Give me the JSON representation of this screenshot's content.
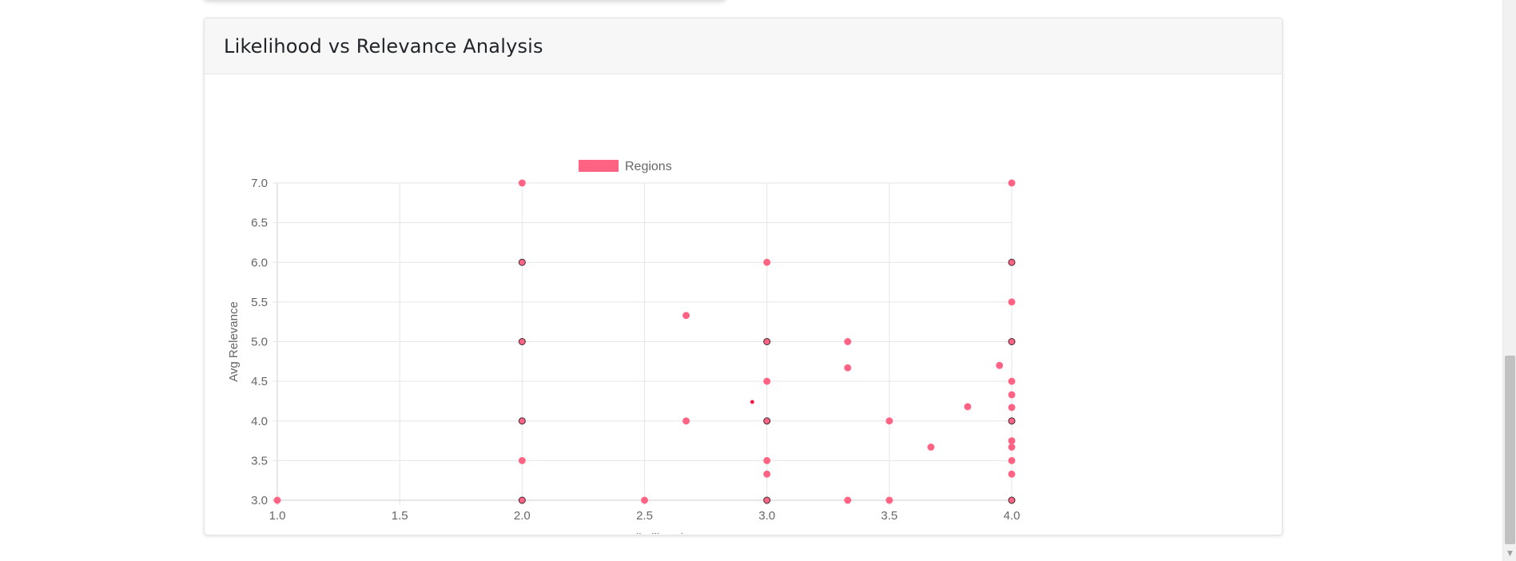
{
  "card": {
    "title": "Likelihood vs Relevance Analysis"
  },
  "icons": {
    "scroll_down": "▼"
  },
  "chart_data": {
    "type": "scatter",
    "title": "",
    "xlabel": "Avg Likelihood",
    "ylabel": "Avg Relevance",
    "xlim": [
      1.0,
      4.0
    ],
    "ylim": [
      3.0,
      7.0
    ],
    "x_ticks": [
      "1.0",
      "1.5",
      "2.0",
      "2.5",
      "3.0",
      "3.5",
      "4.0"
    ],
    "y_ticks": [
      "3.0",
      "3.5",
      "4.0",
      "4.5",
      "5.0",
      "5.5",
      "6.0",
      "6.5",
      "7.0"
    ],
    "grid": true,
    "legend_position": "top",
    "series": [
      {
        "name": "Regions",
        "color": "#ff6384",
        "points": [
          {
            "x": 1.0,
            "y": 3.0
          },
          {
            "x": 2.0,
            "y": 7.0
          },
          {
            "x": 2.0,
            "y": 6.0
          },
          {
            "x": 2.0,
            "y": 5.0
          },
          {
            "x": 2.0,
            "y": 4.0
          },
          {
            "x": 2.0,
            "y": 3.5
          },
          {
            "x": 2.0,
            "y": 3.0
          },
          {
            "x": 2.5,
            "y": 3.0
          },
          {
            "x": 2.67,
            "y": 5.33
          },
          {
            "x": 2.67,
            "y": 4.0
          },
          {
            "x": 2.94,
            "y": 4.24
          },
          {
            "x": 3.0,
            "y": 6.0
          },
          {
            "x": 3.0,
            "y": 5.0
          },
          {
            "x": 3.0,
            "y": 4.5
          },
          {
            "x": 3.0,
            "y": 4.0
          },
          {
            "x": 3.0,
            "y": 3.5
          },
          {
            "x": 3.0,
            "y": 3.33
          },
          {
            "x": 3.0,
            "y": 3.0
          },
          {
            "x": 3.33,
            "y": 5.0
          },
          {
            "x": 3.33,
            "y": 4.67
          },
          {
            "x": 3.33,
            "y": 3.0
          },
          {
            "x": 3.5,
            "y": 4.0
          },
          {
            "x": 3.5,
            "y": 3.0
          },
          {
            "x": 3.67,
            "y": 3.67
          },
          {
            "x": 3.82,
            "y": 4.18
          },
          {
            "x": 3.95,
            "y": 4.7
          },
          {
            "x": 4.0,
            "y": 7.0
          },
          {
            "x": 4.0,
            "y": 6.0
          },
          {
            "x": 4.0,
            "y": 5.5
          },
          {
            "x": 4.0,
            "y": 5.0
          },
          {
            "x": 4.0,
            "y": 4.5
          },
          {
            "x": 4.0,
            "y": 4.33
          },
          {
            "x": 4.0,
            "y": 4.17
          },
          {
            "x": 4.0,
            "y": 4.0
          },
          {
            "x": 4.0,
            "y": 3.75
          },
          {
            "x": 4.0,
            "y": 3.67
          },
          {
            "x": 4.0,
            "y": 3.5
          },
          {
            "x": 4.0,
            "y": 3.33
          },
          {
            "x": 4.0,
            "y": 3.0
          }
        ]
      }
    ]
  }
}
